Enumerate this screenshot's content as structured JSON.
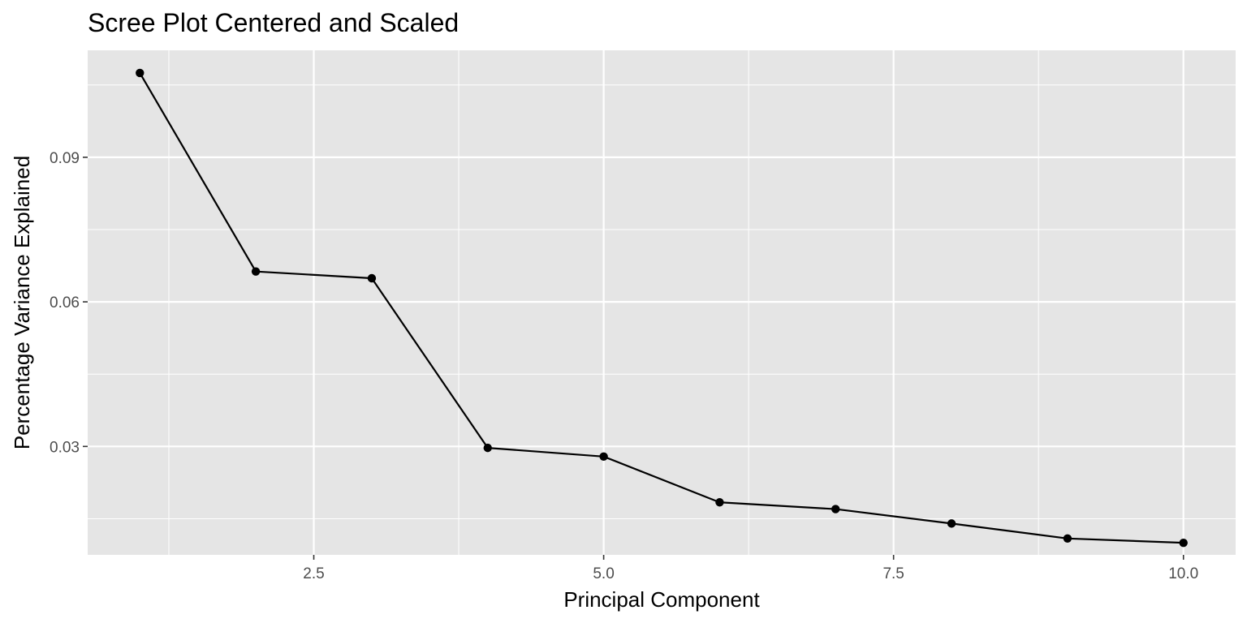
{
  "chart_data": {
    "type": "line",
    "title": "Scree Plot Centered and Scaled",
    "xlabel": "Principal Component",
    "ylabel": "Percentage Variance Explained",
    "x": [
      1,
      2,
      3,
      4,
      5,
      6,
      7,
      8,
      9,
      10
    ],
    "series": [
      {
        "values": [
          0.1075,
          0.0663,
          0.0649,
          0.0297,
          0.0279,
          0.0184,
          0.017,
          0.014,
          0.0109,
          0.01
        ]
      }
    ],
    "xlim": [
      0.55,
      10.45
    ],
    "ylim": [
      0.0075,
      0.1122
    ],
    "x_ticks": [
      2.5,
      5.0,
      7.5,
      10.0
    ],
    "x_tick_labels": [
      "2.5",
      "5.0",
      "7.5",
      "10.0"
    ],
    "x_minor_ticks": [
      1.25,
      3.75,
      6.25,
      8.75
    ],
    "y_ticks": [
      0.03,
      0.06,
      0.09
    ],
    "y_tick_labels": [
      "0.03",
      "0.06",
      "0.09"
    ],
    "y_minor_ticks": [
      0.015,
      0.045,
      0.075,
      0.105
    ],
    "grid": true,
    "legend": "none",
    "colors": {
      "panel_background": "#e5e5e5",
      "grid_line": "#ffffff",
      "series_line": "#000000",
      "point": "#000000",
      "tick_label": "#4d4d4d",
      "text": "#000000"
    }
  }
}
